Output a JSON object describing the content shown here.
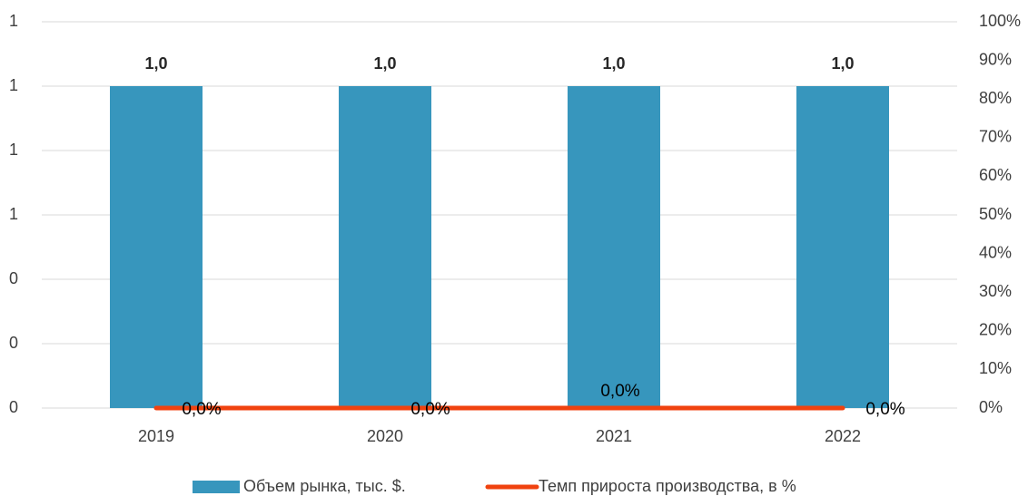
{
  "chart_data": {
    "type": "bar-line",
    "categories": [
      "2019",
      "2020",
      "2021",
      "2022"
    ],
    "series": [
      {
        "name": "Объем рынка, тыс. $.",
        "color": "#3796bd",
        "type": "bar",
        "values": [
          1.0,
          1.0,
          1.0,
          1.0
        ],
        "value_labels": [
          "1,0",
          "1,0",
          "1,0",
          "1,0"
        ]
      },
      {
        "name": "Темп прироста производства, в %",
        "color": "#f0420f",
        "type": "line",
        "axis": "y2",
        "values": [
          0,
          0,
          0,
          0
        ],
        "value_labels": [
          "0,0%",
          "0,0%",
          "0,0%",
          "0,0%"
        ]
      }
    ],
    "ylim": [
      0,
      1.2
    ],
    "yticks": [
      0,
      {
        "value": 0.2,
        "label": "0"
      },
      {
        "value": 0.4,
        "label": "0"
      },
      {
        "value": 0.6,
        "label": "1"
      },
      {
        "value": 0.8,
        "label": "1"
      },
      1,
      {
        "value": 1.2,
        "label": "1"
      }
    ],
    "y2lim": [
      0,
      100
    ],
    "y2ticks": [
      {
        "value": 0,
        "label": "0%"
      },
      {
        "value": 10,
        "label": "10%"
      },
      {
        "value": 20,
        "label": "20%"
      },
      {
        "value": 30,
        "label": "30%"
      },
      {
        "value": 40,
        "label": "40%"
      },
      {
        "value": 50,
        "label": "50%"
      },
      {
        "value": 60,
        "label": "60%"
      },
      {
        "value": 70,
        "label": "70%"
      },
      {
        "value": 80,
        "label": "80%"
      },
      {
        "value": 90,
        "label": "90%"
      },
      {
        "value": 100,
        "label": "100%"
      }
    ],
    "grid": true,
    "legend": "bottom"
  }
}
